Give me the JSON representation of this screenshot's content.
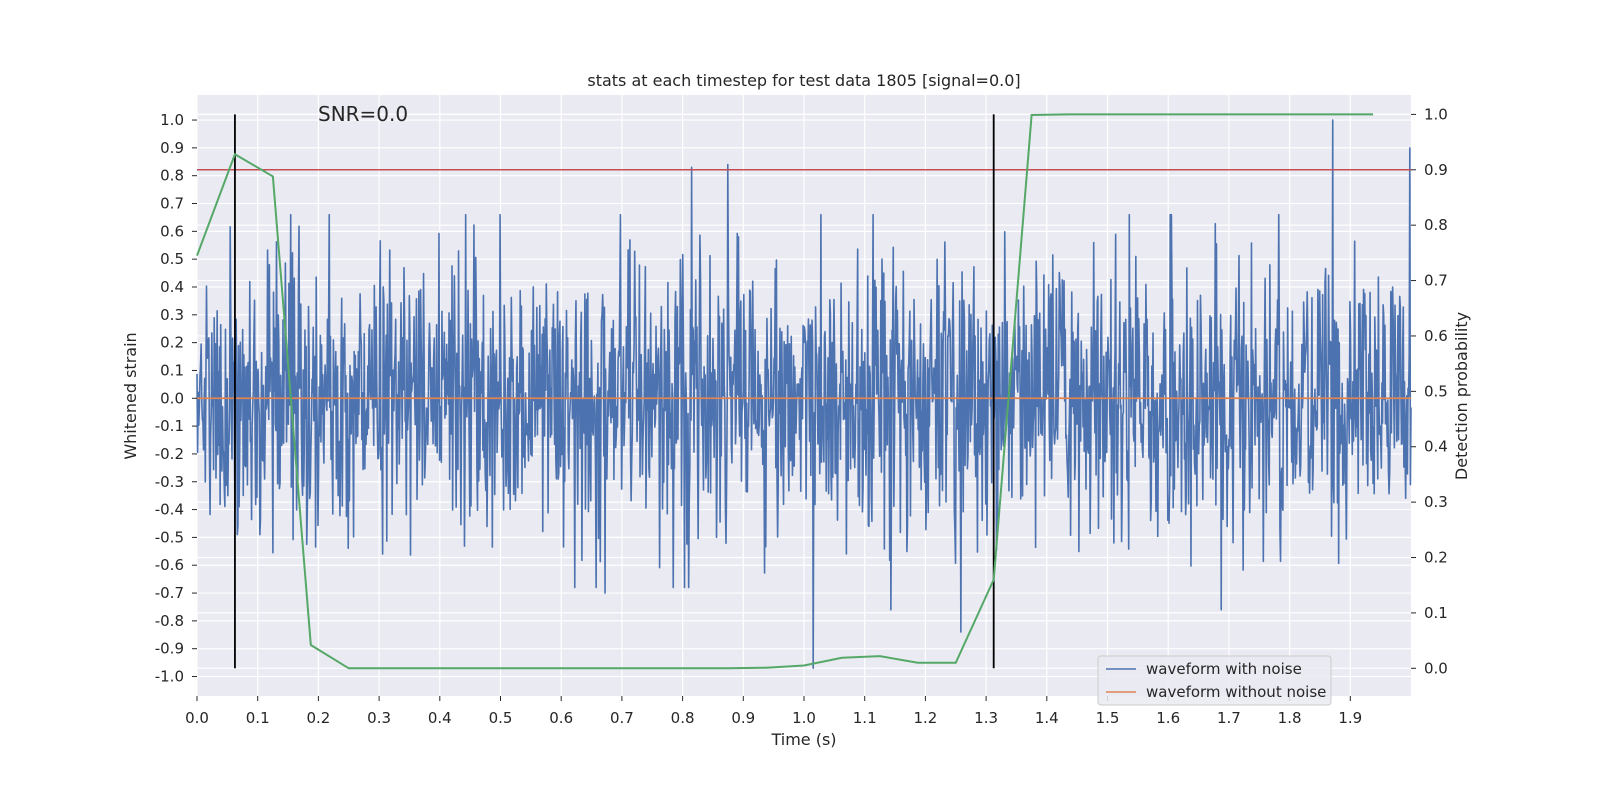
{
  "chart_data": {
    "type": "line",
    "title": "stats at each timestep for test data 1805 [signal=0.0]",
    "annotation": "SNR=0.0",
    "xlabel": "Time (s)",
    "ylabel_left": "Whitened strain",
    "ylabel_right": "Detection probability",
    "xlim": [
      0.0,
      2.0
    ],
    "ylim_left": [
      -1.07,
      1.09
    ],
    "ylim_right": [
      -0.05,
      1.035
    ],
    "x_ticks": [
      "0.0",
      "0.1",
      "0.2",
      "0.3",
      "0.4",
      "0.5",
      "0.6",
      "0.7",
      "0.8",
      "0.9",
      "1.0",
      "1.1",
      "1.2",
      "1.3",
      "1.4",
      "1.5",
      "1.6",
      "1.7",
      "1.8",
      "1.9"
    ],
    "y_ticks_left": [
      "1.0",
      "0.9",
      "0.8",
      "0.7",
      "0.6",
      "0.5",
      "0.4",
      "0.3",
      "0.2",
      "0.1",
      "0.0",
      "-0.1",
      "-0.2",
      "-0.3",
      "-0.4",
      "-0.5",
      "-0.6",
      "-0.7",
      "-0.8",
      "-0.9",
      "-1.0"
    ],
    "y_ticks_right": [
      "1.0",
      "0.9",
      "0.8",
      "0.7",
      "0.6",
      "0.5",
      "0.4",
      "0.3",
      "0.2",
      "0.1",
      "0.0"
    ],
    "grid": true,
    "legend_position": "lower-right",
    "series": [
      {
        "name": "waveform with noise",
        "color": "#4c72b0",
        "axis": "left",
        "noise_std": 0.24,
        "noise_seed": 1805,
        "peaks": [
          {
            "x": 0.815,
            "y": 0.83
          },
          {
            "x": 0.874,
            "y": 0.84
          },
          {
            "x": 1.871,
            "y": 1.0
          },
          {
            "x": 1.998,
            "y": 0.9
          },
          {
            "x": 1.015,
            "y": -0.97
          },
          {
            "x": 0.672,
            "y": -0.7
          },
          {
            "x": 1.687,
            "y": -0.76
          },
          {
            "x": 1.143,
            "y": -0.76
          },
          {
            "x": 1.258,
            "y": -0.84
          }
        ]
      },
      {
        "name": "waveform without noise",
        "color": "#dd8452",
        "axis": "left",
        "x": [
          0.0,
          2.0
        ],
        "y": [
          0.0,
          0.0
        ]
      },
      {
        "name": "detection probability",
        "color": "#55a868",
        "axis": "right",
        "x": [
          0.0,
          0.0625,
          0.125,
          0.1875,
          0.25,
          0.3125,
          0.375,
          0.4375,
          0.5,
          0.5625,
          0.625,
          0.6875,
          0.75,
          0.8125,
          0.875,
          0.9375,
          1.0,
          1.0625,
          1.125,
          1.1875,
          1.25,
          1.3125,
          1.375,
          1.4375,
          1.5,
          1.5625,
          1.625,
          1.6875,
          1.75,
          1.8125,
          1.875,
          1.9375
        ],
        "y": [
          0.745,
          0.928,
          0.888,
          0.042,
          0.0,
          0.0,
          0.0,
          0.0,
          0.0,
          0.0,
          0.0,
          0.0,
          0.0,
          0.0,
          0.0,
          0.001,
          0.005,
          0.019,
          0.022,
          0.01,
          0.01,
          0.16,
          0.999,
          1.0,
          1.0,
          1.0,
          1.0,
          1.0,
          1.0,
          1.0,
          1.0,
          1.0
        ]
      }
    ],
    "threshold_line": {
      "axis": "right",
      "value": 0.9,
      "color": "#c44e52"
    },
    "vertical_markers": {
      "x": [
        0.0625,
        1.3125
      ],
      "color": "#000000"
    },
    "legend": [
      {
        "label": "waveform with noise",
        "color": "#4c72b0"
      },
      {
        "label": "waveform without noise",
        "color": "#dd8452"
      }
    ]
  },
  "colors": {
    "axes_background": "#eaeaf2",
    "grid": "#ffffff",
    "text": "#262626"
  }
}
